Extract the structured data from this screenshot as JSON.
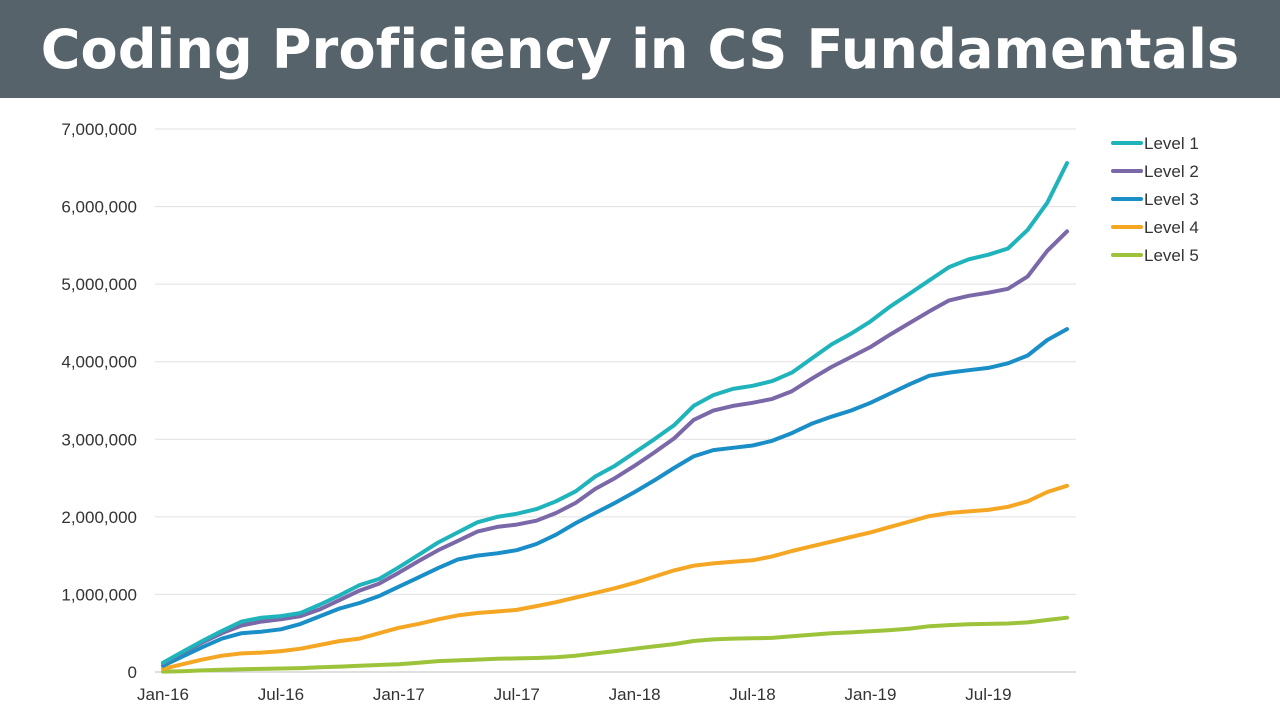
{
  "header": {
    "title": "Coding Proficiency in CS Fundamentals"
  },
  "chart_data": {
    "type": "line",
    "title": "Coding Proficiency in CS Fundamentals",
    "xlabel": "",
    "ylabel": "",
    "ylim": [
      0,
      7000000
    ],
    "yticks": [
      0,
      1000000,
      2000000,
      3000000,
      4000000,
      5000000,
      6000000,
      7000000
    ],
    "ytick_labels": [
      "0",
      "1,000,000",
      "2,000,000",
      "3,000,000",
      "4,000,000",
      "5,000,000",
      "6,000,000",
      "7,000,000"
    ],
    "xtick_labels": [
      "Jan-16",
      "Jul-16",
      "Jan-17",
      "Jul-17",
      "Jan-18",
      "Jul-18",
      "Jan-19",
      "Jul-19"
    ],
    "xtick_months": [
      0,
      6,
      12,
      18,
      24,
      30,
      36,
      42
    ],
    "grid": true,
    "legend_position": "top-right",
    "x": [
      "Jan-16",
      "Feb-16",
      "Mar-16",
      "Apr-16",
      "May-16",
      "Jun-16",
      "Jul-16",
      "Aug-16",
      "Sep-16",
      "Oct-16",
      "Nov-16",
      "Dec-16",
      "Jan-17",
      "Feb-17",
      "Mar-17",
      "Apr-17",
      "May-17",
      "Jun-17",
      "Jul-17",
      "Aug-17",
      "Sep-17",
      "Oct-17",
      "Nov-17",
      "Dec-17",
      "Jan-18",
      "Feb-18",
      "Mar-18",
      "Apr-18",
      "May-18",
      "Jun-18",
      "Jul-18",
      "Aug-18",
      "Sep-18",
      "Oct-18",
      "Nov-18",
      "Dec-18",
      "Jan-19",
      "Feb-19",
      "Mar-19",
      "Apr-19",
      "May-19",
      "Jun-19",
      "Jul-19",
      "Aug-19",
      "Sep-19",
      "Oct-19",
      "Nov-19"
    ],
    "series": [
      {
        "name": "Level 1",
        "color": "#1fb3bb",
        "values": [
          120000,
          260000,
          400000,
          530000,
          650000,
          700000,
          720000,
          760000,
          870000,
          990000,
          1120000,
          1200000,
          1350000,
          1510000,
          1670000,
          1800000,
          1930000,
          2000000,
          2040000,
          2100000,
          2200000,
          2330000,
          2520000,
          2660000,
          2830000,
          3000000,
          3180000,
          3430000,
          3570000,
          3650000,
          3690000,
          3750000,
          3860000,
          4040000,
          4220000,
          4360000,
          4520000,
          4710000,
          4880000,
          5050000,
          5220000,
          5320000,
          5380000,
          5460000,
          5700000,
          6050000,
          6560000
        ]
      },
      {
        "name": "Level 2",
        "color": "#7b68a8",
        "values": [
          110000,
          250000,
          380000,
          500000,
          600000,
          650000,
          680000,
          720000,
          810000,
          930000,
          1050000,
          1140000,
          1280000,
          1430000,
          1570000,
          1690000,
          1810000,
          1870000,
          1900000,
          1950000,
          2050000,
          2180000,
          2360000,
          2500000,
          2660000,
          2830000,
          3010000,
          3250000,
          3370000,
          3430000,
          3470000,
          3520000,
          3620000,
          3780000,
          3930000,
          4060000,
          4190000,
          4350000,
          4500000,
          4650000,
          4790000,
          4850000,
          4890000,
          4940000,
          5100000,
          5430000,
          5680000
        ]
      },
      {
        "name": "Level 3",
        "color": "#1a8ec7",
        "values": [
          80000,
          200000,
          320000,
          430000,
          500000,
          520000,
          550000,
          620000,
          720000,
          820000,
          890000,
          980000,
          1100000,
          1220000,
          1340000,
          1450000,
          1500000,
          1530000,
          1570000,
          1650000,
          1770000,
          1920000,
          2050000,
          2180000,
          2320000,
          2470000,
          2630000,
          2780000,
          2860000,
          2890000,
          2920000,
          2980000,
          3080000,
          3200000,
          3290000,
          3370000,
          3470000,
          3590000,
          3710000,
          3820000,
          3860000,
          3890000,
          3920000,
          3980000,
          4080000,
          4280000,
          4420000
        ]
      },
      {
        "name": "Level 4",
        "color": "#f5a623",
        "values": [
          40000,
          100000,
          160000,
          210000,
          240000,
          250000,
          270000,
          300000,
          350000,
          400000,
          430000,
          500000,
          570000,
          620000,
          680000,
          730000,
          760000,
          780000,
          800000,
          850000,
          900000,
          960000,
          1020000,
          1080000,
          1150000,
          1230000,
          1310000,
          1370000,
          1400000,
          1420000,
          1440000,
          1490000,
          1560000,
          1620000,
          1680000,
          1740000,
          1800000,
          1870000,
          1940000,
          2010000,
          2050000,
          2070000,
          2090000,
          2130000,
          2200000,
          2320000,
          2400000
        ]
      },
      {
        "name": "Level 5",
        "color": "#9dc33b",
        "values": [
          5000,
          10000,
          20000,
          30000,
          35000,
          40000,
          45000,
          50000,
          60000,
          70000,
          80000,
          90000,
          100000,
          120000,
          140000,
          150000,
          160000,
          170000,
          175000,
          180000,
          190000,
          210000,
          240000,
          270000,
          300000,
          330000,
          360000,
          400000,
          420000,
          430000,
          435000,
          440000,
          460000,
          480000,
          500000,
          510000,
          525000,
          540000,
          560000,
          590000,
          605000,
          615000,
          620000,
          625000,
          640000,
          670000,
          700000
        ]
      }
    ]
  }
}
